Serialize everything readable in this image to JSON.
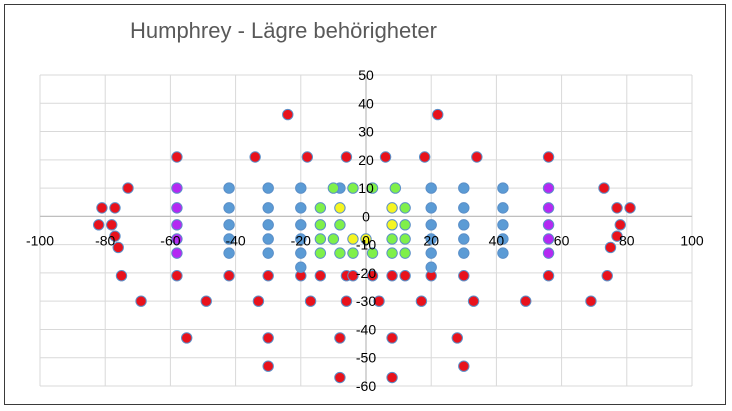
{
  "chart_data": {
    "type": "scatter",
    "title": "Humphrey - Lägre behörigheter",
    "xlim": [
      -100,
      100
    ],
    "ylim": [
      -60,
      50
    ],
    "x_ticks": [
      -100,
      -80,
      -60,
      -40,
      -20,
      0,
      20,
      40,
      60,
      80,
      100
    ],
    "y_ticks": [
      50,
      40,
      30,
      20,
      10,
      0,
      -10,
      -20,
      -30,
      -40,
      -50,
      -60
    ],
    "grid": true,
    "colors": {
      "red": "#e8121c",
      "blue": "#5b9bd5",
      "purple": "#b429f2",
      "green": "#7ff04a",
      "yellow": "#f5f522",
      "outline": "#5b8fc8",
      "grid": "#d9d9d9",
      "axis": "#bfbfbf"
    },
    "series": [
      {
        "color": "red",
        "points": [
          [
            -24,
            36
          ],
          [
            22,
            36
          ],
          [
            -58,
            21
          ],
          [
            -34,
            21
          ],
          [
            -18,
            21
          ],
          [
            -6,
            21
          ],
          [
            6,
            21
          ],
          [
            18,
            21
          ],
          [
            34,
            21
          ],
          [
            56,
            21
          ],
          [
            -73,
            10
          ],
          [
            73,
            10
          ],
          [
            -81,
            3
          ],
          [
            -77,
            3
          ],
          [
            77,
            3
          ],
          [
            81,
            3
          ],
          [
            -82,
            -3
          ],
          [
            -78,
            -3
          ],
          [
            78,
            -3
          ],
          [
            -77,
            -7
          ],
          [
            77,
            -7
          ],
          [
            -76,
            -11
          ],
          [
            75,
            -11
          ],
          [
            -75,
            -21
          ],
          [
            -58,
            -21
          ],
          [
            -42,
            -21
          ],
          [
            -30,
            -21
          ],
          [
            -20,
            -21
          ],
          [
            -14,
            -21
          ],
          [
            -6,
            -21
          ],
          [
            -4,
            -21
          ],
          [
            2,
            -21
          ],
          [
            8,
            -21
          ],
          [
            12,
            -21
          ],
          [
            20,
            -21
          ],
          [
            30,
            -21
          ],
          [
            56,
            -21
          ],
          [
            74,
            -21
          ],
          [
            -69,
            -30
          ],
          [
            -49,
            -30
          ],
          [
            -33,
            -30
          ],
          [
            -17,
            -30
          ],
          [
            -6,
            -30
          ],
          [
            4,
            -30
          ],
          [
            17,
            -30
          ],
          [
            33,
            -30
          ],
          [
            49,
            -30
          ],
          [
            69,
            -30
          ],
          [
            -55,
            -43
          ],
          [
            -30,
            -43
          ],
          [
            -8,
            -43
          ],
          [
            8,
            -43
          ],
          [
            28,
            -43
          ],
          [
            -30,
            -53
          ],
          [
            30,
            -53
          ],
          [
            -8,
            -57
          ],
          [
            8,
            -57
          ]
        ]
      },
      {
        "color": "blue",
        "points": [
          [
            -42,
            10
          ],
          [
            -30,
            10
          ],
          [
            -20,
            10
          ],
          [
            -8,
            10
          ],
          [
            20,
            10
          ],
          [
            30,
            10
          ],
          [
            42,
            10
          ],
          [
            -42,
            3
          ],
          [
            -30,
            3
          ],
          [
            -20,
            3
          ],
          [
            20,
            3
          ],
          [
            30,
            3
          ],
          [
            42,
            3
          ],
          [
            -42,
            -3
          ],
          [
            -30,
            -3
          ],
          [
            -20,
            -3
          ],
          [
            20,
            -3
          ],
          [
            30,
            -3
          ],
          [
            42,
            -3
          ],
          [
            -42,
            -8
          ],
          [
            -30,
            -8
          ],
          [
            -20,
            -8
          ],
          [
            20,
            -8
          ],
          [
            30,
            -8
          ],
          [
            42,
            -8
          ],
          [
            -42,
            -13
          ],
          [
            -30,
            -13
          ],
          [
            -20,
            -13
          ],
          [
            20,
            -13
          ],
          [
            30,
            -13
          ],
          [
            42,
            -13
          ],
          [
            -20,
            -18
          ],
          [
            20,
            -18
          ]
        ]
      },
      {
        "color": "purple",
        "points": [
          [
            -58,
            10
          ],
          [
            56,
            10
          ],
          [
            -58,
            3
          ],
          [
            56,
            3
          ],
          [
            -58,
            -3
          ],
          [
            56,
            -3
          ],
          [
            -58,
            -8
          ],
          [
            56,
            -8
          ],
          [
            -58,
            -13
          ],
          [
            56,
            -13
          ]
        ]
      },
      {
        "color": "green",
        "points": [
          [
            -10,
            10
          ],
          [
            -4,
            10
          ],
          [
            2,
            10
          ],
          [
            9,
            10
          ],
          [
            -14,
            3
          ],
          [
            12,
            3
          ],
          [
            -14,
            -3
          ],
          [
            -8,
            -3
          ],
          [
            12,
            -3
          ],
          [
            -14,
            -8
          ],
          [
            -10,
            -8
          ],
          [
            8,
            -8
          ],
          [
            12,
            -8
          ],
          [
            -14,
            -13
          ],
          [
            -8,
            -13
          ],
          [
            -4,
            -13
          ],
          [
            2,
            -13
          ],
          [
            8,
            -13
          ],
          [
            12,
            -13
          ]
        ]
      },
      {
        "color": "yellow",
        "points": [
          [
            -8,
            3
          ],
          [
            8,
            3
          ],
          [
            8,
            -3
          ],
          [
            -4,
            -8
          ],
          [
            0,
            -8
          ]
        ]
      }
    ]
  }
}
